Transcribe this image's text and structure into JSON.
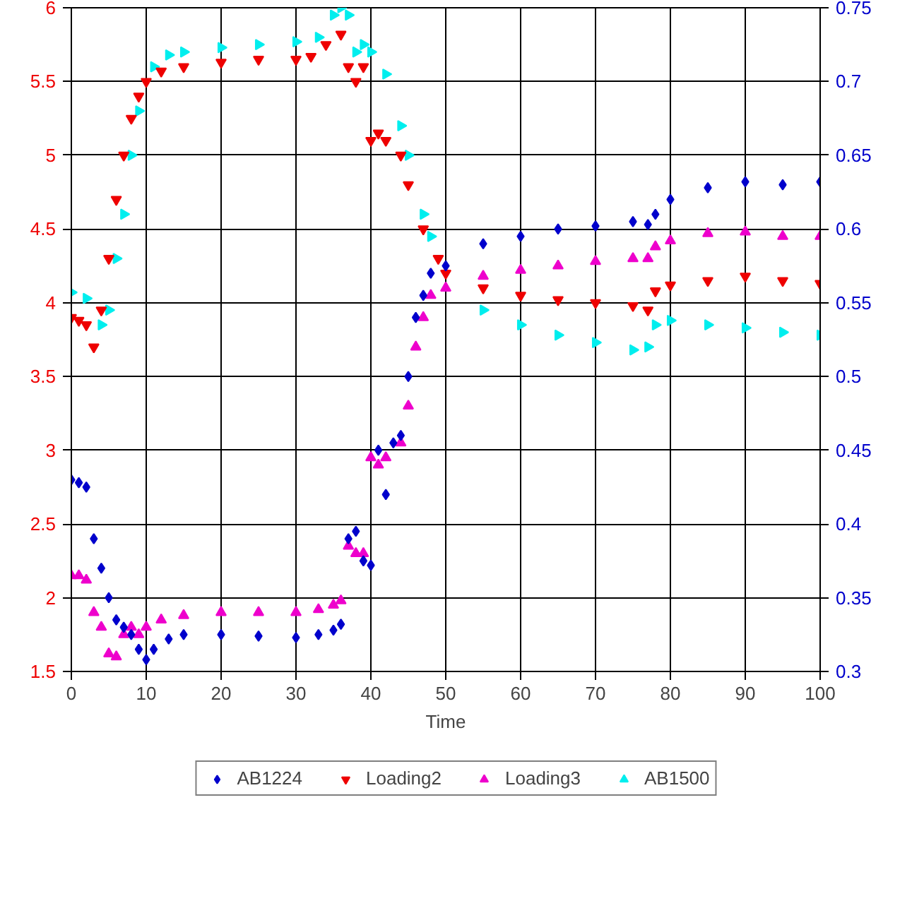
{
  "chart_data": {
    "type": "scatter",
    "xlabel": "Time",
    "xlim": [
      0,
      100
    ],
    "xticks": [
      0,
      10,
      20,
      30,
      40,
      50,
      60,
      70,
      80,
      90,
      100
    ],
    "ylim": [
      1.5,
      6
    ],
    "yticks": [
      {
        "value": 1.5,
        "label": "1.5"
      },
      2,
      2.5,
      3,
      3.5,
      4,
      4.5,
      5,
      5.5,
      6
    ],
    "y2lim": [
      0.3,
      0.75
    ],
    "y2ticks": [
      0.3,
      0.35,
      0.4,
      0.45,
      0.5,
      0.55,
      0.6,
      0.65,
      0.7,
      0.75
    ],
    "grid": true,
    "legend": "bottom",
    "series": [
      {
        "name": "AB1224",
        "color": "#0000cc",
        "marker": "diamond",
        "axis": "y2",
        "x": [
          0,
          1,
          2,
          3,
          4,
          5,
          6,
          7,
          8,
          9,
          10,
          11,
          13,
          15,
          20,
          25,
          30,
          33,
          35,
          36,
          37,
          38,
          39,
          40,
          41,
          42,
          43,
          44,
          45,
          46,
          47,
          48,
          50,
          55,
          60,
          65,
          70,
          75,
          77,
          78,
          80,
          85,
          90,
          95,
          100
        ],
        "values": [
          0.43,
          0.428,
          0.425,
          0.39,
          0.37,
          0.35,
          0.335,
          0.33,
          0.325,
          0.315,
          0.308,
          0.315,
          0.322,
          0.325,
          0.325,
          0.324,
          0.323,
          0.325,
          0.328,
          0.332,
          0.39,
          0.395,
          0.375,
          0.372,
          0.45,
          0.42,
          0.455,
          0.46,
          0.5,
          0.54,
          0.555,
          0.57,
          0.575,
          0.59,
          0.595,
          0.6,
          0.602,
          0.605,
          0.603,
          0.61,
          0.62,
          0.628,
          0.632,
          0.63,
          0.632
        ]
      },
      {
        "name": "Loading2",
        "color": "#ee0000",
        "marker": "triangle_down",
        "x": [
          0,
          1,
          2,
          3,
          4,
          5,
          6,
          7,
          8,
          9,
          10,
          12,
          15,
          20,
          25,
          30,
          32,
          34,
          36,
          37,
          38,
          39,
          40,
          41,
          42,
          44,
          45,
          47,
          49,
          50,
          55,
          60,
          65,
          70,
          75,
          77,
          78,
          80,
          85,
          90,
          95,
          100
        ],
        "values": [
          3.9,
          3.88,
          3.85,
          3.7,
          3.95,
          4.3,
          4.7,
          5.0,
          5.25,
          5.4,
          5.5,
          5.57,
          5.6,
          5.63,
          5.65,
          5.65,
          5.67,
          5.75,
          5.82,
          5.6,
          5.5,
          5.6,
          5.1,
          5.15,
          5.1,
          5.0,
          4.8,
          4.5,
          4.3,
          4.2,
          4.1,
          4.05,
          4.02,
          4.0,
          3.98,
          3.95,
          4.08,
          4.12,
          4.15,
          4.18,
          4.15,
          4.13
        ]
      },
      {
        "name": "Loading3",
        "color": "#ee00cc",
        "marker": "triangle",
        "x": [
          0,
          1,
          2,
          3,
          4,
          5,
          6,
          7,
          8,
          9,
          10,
          12,
          15,
          20,
          25,
          30,
          33,
          35,
          36,
          37,
          38,
          39,
          40,
          41,
          42,
          44,
          45,
          46,
          47,
          48,
          50,
          55,
          60,
          65,
          70,
          75,
          77,
          78,
          80,
          85,
          90,
          95,
          100
        ],
        "values": [
          2.15,
          2.15,
          2.12,
          1.9,
          1.8,
          1.62,
          1.6,
          1.75,
          1.8,
          1.75,
          1.8,
          1.85,
          1.88,
          1.9,
          1.9,
          1.9,
          1.92,
          1.95,
          1.98,
          2.35,
          2.3,
          2.3,
          2.95,
          2.9,
          2.95,
          3.05,
          3.3,
          3.7,
          3.9,
          4.05,
          4.1,
          4.18,
          4.22,
          4.25,
          4.28,
          4.3,
          4.3,
          4.38,
          4.42,
          4.47,
          4.48,
          4.45,
          4.45
        ]
      },
      {
        "name": "AB1500",
        "color": "#00eeee",
        "marker": "triangle_right",
        "axis": "y2",
        "x": [
          0,
          2,
          3,
          4,
          5,
          6,
          7,
          8,
          9,
          10,
          11,
          13,
          15,
          20,
          25,
          30,
          33,
          35,
          36,
          37,
          38,
          39,
          40,
          42,
          44,
          45,
          47,
          48,
          50,
          55,
          60,
          65,
          70,
          75,
          77,
          78,
          80,
          85,
          90,
          95,
          100
        ],
        "values": [
          0.557,
          0.553,
          null,
          0.535,
          0.545,
          0.58,
          0.61,
          0.65,
          0.68,
          null,
          0.71,
          0.718,
          0.72,
          0.723,
          0.725,
          0.727,
          0.73,
          0.745,
          0.75,
          0.745,
          0.72,
          0.725,
          0.72,
          0.705,
          0.67,
          0.65,
          0.61,
          0.595,
          null,
          0.545,
          0.535,
          0.528,
          0.523,
          0.518,
          0.52,
          0.535,
          0.538,
          0.535,
          0.533,
          0.53,
          0.528
        ]
      }
    ]
  }
}
